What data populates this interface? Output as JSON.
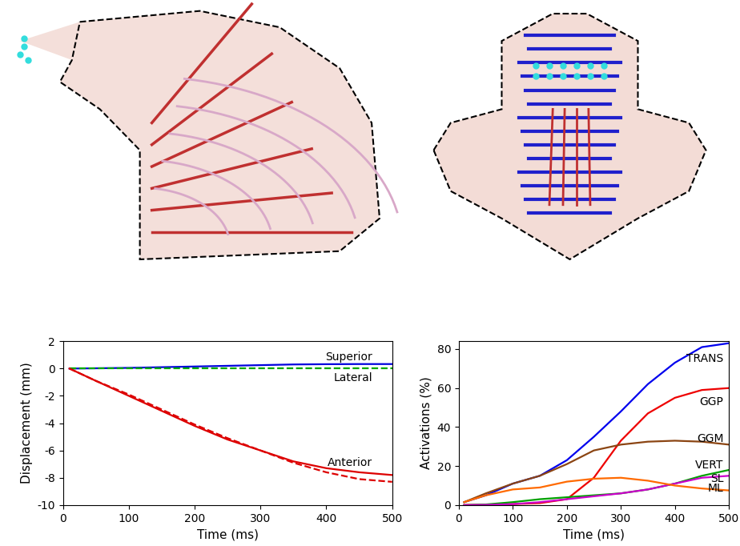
{
  "chart_data": [
    {
      "type": "line",
      "xlabel": "Time (ms)",
      "ylabel": "Displacement (mm)",
      "x": [
        10,
        50,
        100,
        150,
        200,
        250,
        300,
        350,
        400,
        450,
        500
      ],
      "xlim": [
        0,
        500
      ],
      "xticks": [
        0,
        100,
        200,
        300,
        400,
        500
      ],
      "ylim": [
        -10,
        2
      ],
      "yticks": [
        -10,
        -8,
        -6,
        -4,
        -2,
        0,
        2
      ],
      "series": [
        {
          "name": "Superior",
          "color": "#0000dd",
          "line_style": "solid",
          "values": [
            0,
            0.02,
            0.05,
            0.1,
            0.15,
            0.2,
            0.25,
            0.3,
            0.32,
            0.33,
            0.33
          ]
        },
        {
          "name": "Lateral",
          "color": "#00aa00",
          "line_style": "dashed",
          "values": [
            0,
            0,
            0,
            0,
            0,
            0,
            0,
            0,
            0,
            0,
            0
          ]
        },
        {
          "name": "Anterior",
          "color": "#dd0000",
          "line_style": "solid",
          "values": [
            0,
            -0.9,
            -2.0,
            -3.1,
            -4.2,
            -5.2,
            -6.0,
            -6.8,
            -7.3,
            -7.6,
            -7.8
          ]
        },
        {
          "color": "#dd0000",
          "line_style": "dashed",
          "values": [
            0,
            -0.9,
            -1.9,
            -3.0,
            -4.1,
            -5.1,
            -6.0,
            -6.9,
            -7.6,
            -8.1,
            -8.3
          ]
        }
      ]
    },
    {
      "type": "line",
      "xlabel": "Time (ms)",
      "ylabel": "Activations (%)",
      "x": [
        10,
        50,
        100,
        150,
        200,
        250,
        300,
        350,
        400,
        450,
        500
      ],
      "xlim": [
        0,
        500
      ],
      "xticks": [
        0,
        100,
        200,
        300,
        400,
        500
      ],
      "ylim": [
        0,
        84
      ],
      "yticks": [
        0,
        20,
        40,
        60,
        80
      ],
      "series": [
        {
          "name": "TRANS",
          "color": "#0000ee",
          "line_style": "solid",
          "values": [
            1.5,
            5,
            11,
            15,
            23,
            35,
            48,
            62,
            73,
            81,
            83
          ]
        },
        {
          "name": "GGP",
          "color": "#ee0000",
          "line_style": "solid",
          "values": [
            0,
            0.2,
            0.5,
            1,
            3,
            14,
            33,
            47,
            55,
            59,
            60
          ]
        },
        {
          "name": "GGM",
          "color": "#8b4513",
          "line_style": "solid",
          "values": [
            1.5,
            6,
            11,
            15,
            21,
            28,
            31,
            32.5,
            33,
            32.5,
            31
          ]
        },
        {
          "name": "VERT",
          "color": "#00a000",
          "line_style": "solid",
          "values": [
            0,
            0.3,
            1.5,
            3,
            4,
            5,
            6,
            8,
            11,
            15,
            18
          ]
        },
        {
          "name": "SL",
          "color": "#cc00cc",
          "line_style": "solid",
          "values": [
            0,
            0.1,
            0.5,
            1.5,
            3,
            4.5,
            6,
            8,
            11,
            14,
            15
          ]
        },
        {
          "name": "ML",
          "color": "#ff6a00",
          "line_style": "solid",
          "values": [
            1.5,
            5,
            8,
            9,
            12,
            13.5,
            14,
            12.5,
            10,
            8.5,
            7.5
          ]
        }
      ]
    }
  ]
}
